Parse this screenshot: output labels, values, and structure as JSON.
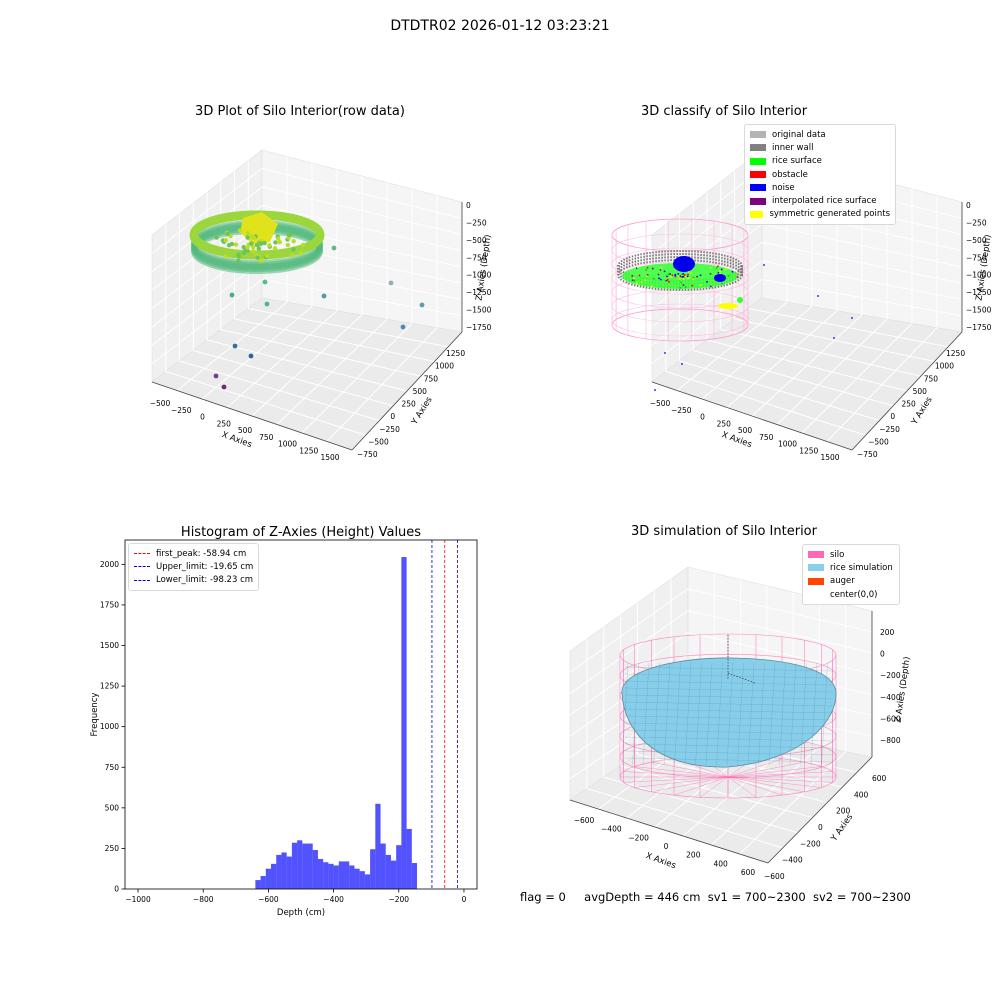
{
  "suptitle": "DTDTR02 2026-01-12 03:23:21",
  "panels": {
    "raw": {
      "title": "3D Plot of Silo Interior(row data)",
      "xlabel": "X Axies",
      "ylabel": "Y Axies",
      "zlabel": "Z Axies (Depth)",
      "xticks": [
        "−500",
        "−250",
        "0",
        "250",
        "500",
        "750",
        "1000",
        "1250",
        "1500"
      ],
      "yticks": [
        "−750",
        "−500",
        "−250",
        "0",
        "250",
        "500",
        "750",
        "1000",
        "1250"
      ],
      "zticks": [
        "0",
        "−250",
        "−500",
        "−750",
        "−1000",
        "−1250",
        "−1500",
        "−1750"
      ]
    },
    "classify": {
      "title": "3D classify of Silo Interior",
      "xlabel": "X Axies",
      "ylabel": "Y Axies",
      "zlabel": "Z Axies (Depth)",
      "xticks": [
        "−500",
        "−250",
        "0",
        "250",
        "500",
        "750",
        "1000",
        "1250",
        "1500"
      ],
      "yticks": [
        "−750",
        "−500",
        "−250",
        "0",
        "250",
        "500",
        "750",
        "1000",
        "1250"
      ],
      "zticks": [
        "0",
        "−250",
        "−500",
        "−750",
        "−1000",
        "−1250",
        "−1500",
        "−1750"
      ],
      "legend": [
        {
          "label": "original data",
          "color": "#b3b3b3"
        },
        {
          "label": "inner wall",
          "color": "#808080"
        },
        {
          "label": "rice surface",
          "color": "#00ff00"
        },
        {
          "label": "obstacle",
          "color": "#ff0000"
        },
        {
          "label": "noise",
          "color": "#0000ff"
        },
        {
          "label": "interpolated rice surface",
          "color": "#800080"
        },
        {
          "label": "symmetric generated points",
          "color": "#ffff00"
        }
      ]
    },
    "simulation": {
      "title": "3D simulation of Silo Interior",
      "xlabel": "X Axies",
      "ylabel": "Y Axies",
      "zlabel": "Z Axies (Depth)",
      "xticks": [
        "−600",
        "−400",
        "−200",
        "0",
        "200",
        "400",
        "600"
      ],
      "yticks": [
        "−600",
        "−400",
        "−200",
        "0",
        "200",
        "400",
        "600"
      ],
      "zticks": [
        "200",
        "0",
        "−200",
        "−400",
        "−600",
        "−800"
      ],
      "legend": [
        {
          "label": "silo",
          "color": "#ff69b4"
        },
        {
          "label": "rice simulation",
          "color": "#87ceeb"
        },
        {
          "label": "auger",
          "color": "#ff4500"
        },
        {
          "label": "center(0,0)",
          "color": ""
        }
      ]
    }
  },
  "chart_data": {
    "type": "bar",
    "title": "Histogram of Z-Axies (Height) Values",
    "xlabel": "Depth (cm)",
    "ylabel": "Frequency",
    "xlim": [
      -1040,
      40
    ],
    "ylim": [
      0,
      2150
    ],
    "xticks": [
      -1000,
      -800,
      -600,
      -400,
      -200,
      0
    ],
    "yticks": [
      0,
      250,
      500,
      750,
      1000,
      1250,
      1500,
      1750,
      2000
    ],
    "bin_width": 16,
    "bars_color": "#0000ff",
    "bins": [
      {
        "x0": -640,
        "count": 55
      },
      {
        "x0": -624,
        "count": 80
      },
      {
        "x0": -608,
        "count": 125
      },
      {
        "x0": -592,
        "count": 155
      },
      {
        "x0": -576,
        "count": 210
      },
      {
        "x0": -560,
        "count": 225
      },
      {
        "x0": -544,
        "count": 200
      },
      {
        "x0": -528,
        "count": 285
      },
      {
        "x0": -512,
        "count": 300
      },
      {
        "x0": -496,
        "count": 280
      },
      {
        "x0": -480,
        "count": 280
      },
      {
        "x0": -464,
        "count": 240
      },
      {
        "x0": -448,
        "count": 185
      },
      {
        "x0": -432,
        "count": 165
      },
      {
        "x0": -416,
        "count": 155
      },
      {
        "x0": -400,
        "count": 145
      },
      {
        "x0": -384,
        "count": 170
      },
      {
        "x0": -368,
        "count": 170
      },
      {
        "x0": -352,
        "count": 145
      },
      {
        "x0": -336,
        "count": 125
      },
      {
        "x0": -320,
        "count": 110
      },
      {
        "x0": -304,
        "count": 90
      },
      {
        "x0": -288,
        "count": 245
      },
      {
        "x0": -272,
        "count": 525
      },
      {
        "x0": -256,
        "count": 280
      },
      {
        "x0": -240,
        "count": 210
      },
      {
        "x0": -224,
        "count": 175
      },
      {
        "x0": -208,
        "count": 270
      },
      {
        "x0": -192,
        "count": 2045
      },
      {
        "x0": -176,
        "count": 370
      },
      {
        "x0": -160,
        "count": 160
      }
    ],
    "vlines": [
      {
        "label": "first_peak: -58.94 cm",
        "x": -58.94,
        "color": "#ff0000"
      },
      {
        "label": "Upper_limit: -19.65 cm",
        "x": -19.65,
        "color": "#0000cc"
      },
      {
        "label": "Lower_limit: -98.23 cm",
        "x": -98.23,
        "color": "#0000cc"
      }
    ]
  },
  "footer": {
    "flag": "flag = 0",
    "avg": "avgDepth = 446 cm",
    "sv1": "sv1 = 700~2300",
    "sv2": "sv2 = 700~2300"
  }
}
